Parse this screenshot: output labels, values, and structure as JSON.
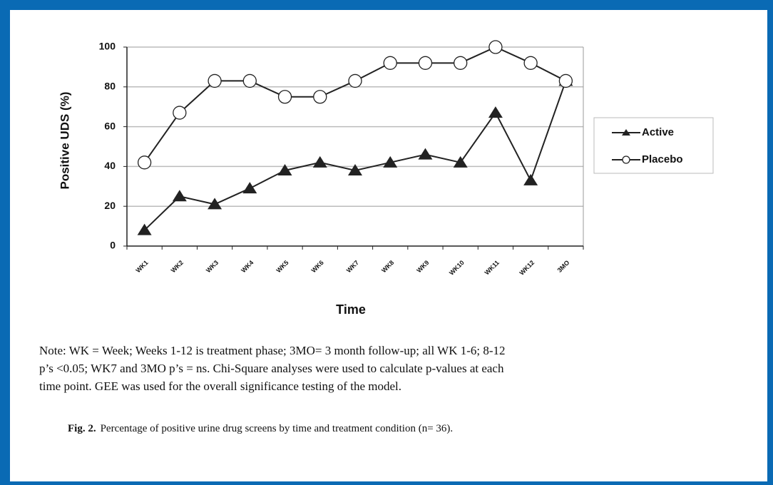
{
  "chart_data": {
    "type": "line",
    "y_label": "Positive UDS (%)",
    "x_label": "Time",
    "categories": [
      "WK1",
      "WK2",
      "WK3",
      "WK4",
      "WK5",
      "WK6",
      "WK7",
      "WK8",
      "WK9",
      "WK10",
      "WK11",
      "WK12",
      "3MO"
    ],
    "series": [
      {
        "name": "Active",
        "color": "#222222",
        "marker": "triangle",
        "values": [
          8,
          25,
          21,
          29,
          38,
          42,
          38,
          42,
          46,
          42,
          67,
          33,
          83
        ]
      },
      {
        "name": "Placebo",
        "color": "#222222",
        "marker": "circle",
        "values": [
          42,
          67,
          83,
          83,
          75,
          75,
          83,
          92,
          92,
          92,
          100,
          92,
          83
        ]
      }
    ],
    "ylim": [
      0,
      100
    ],
    "yticks": [
      0,
      20,
      40,
      60,
      80,
      100
    ],
    "grid": true,
    "legend": "right"
  },
  "note": [
    "Note:  WK = Week; Weeks 1-12 is treatment phase; 3MO= 3 month follow-up; all WK 1-6; 8-12",
    "p’s <0.05; WK7 and 3MO p’s = ns.  Chi-Square analyses were used to calculate p-values at each",
    "time point. GEE was used for the overall significance testing of the model."
  ],
  "caption": {
    "label": "Fig. 2.",
    "text": "Percentage of positive urine drug screens by time and treatment condition (n= 36)."
  }
}
